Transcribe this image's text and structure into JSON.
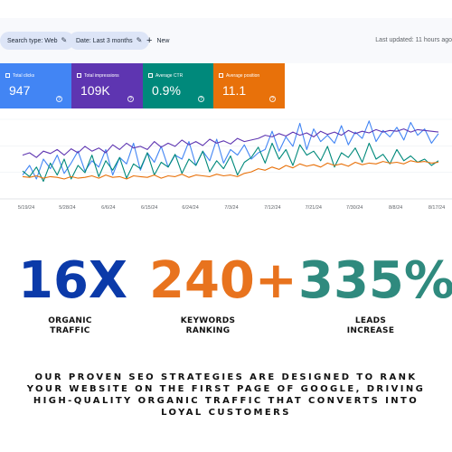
{
  "toolbar": {
    "search_type_chip": "Search type: Web",
    "date_chip": "Date: Last 3 months",
    "new_label": "New",
    "last_updated": "Last updated: 11 hours ago"
  },
  "metrics": [
    {
      "label": "Total clicks",
      "value": "947",
      "color": "#4285f4"
    },
    {
      "label": "Total impressions",
      "value": "109K",
      "color": "#5e35b1"
    },
    {
      "label": "Average CTR",
      "value": "0.9%",
      "color": "#00897b"
    },
    {
      "label": "Average position",
      "value": "11.1",
      "color": "#e8710a"
    }
  ],
  "chart_data": {
    "type": "line",
    "xlabel": "",
    "ylabel": "",
    "grid": true,
    "x_tick_labels": [
      "5/19/24",
      "5/28/24",
      "6/6/24",
      "6/15/24",
      "6/24/24",
      "7/3/24",
      "7/12/24",
      "7/21/24",
      "7/30/24",
      "8/8/24",
      "8/17/24"
    ],
    "series": [
      {
        "color": "#4285f4",
        "values": [
          0.3,
          0.42,
          0.25,
          0.5,
          0.38,
          0.55,
          0.32,
          0.45,
          0.6,
          0.35,
          0.48,
          0.4,
          0.62,
          0.3,
          0.52,
          0.44,
          0.7,
          0.36,
          0.58,
          0.46,
          0.66,
          0.4,
          0.55,
          0.5,
          0.72,
          0.42,
          0.6,
          0.48,
          0.75,
          0.45,
          0.62,
          0.55,
          0.68,
          0.5,
          0.58,
          0.62,
          0.85,
          0.6,
          0.78,
          0.66,
          0.95,
          0.62,
          0.88,
          0.72,
          0.8,
          0.7,
          0.92,
          0.68,
          0.84,
          0.76,
          0.98,
          0.72,
          0.86,
          0.78,
          0.9,
          0.74,
          0.96,
          0.8,
          0.88,
          0.7,
          0.82
        ]
      },
      {
        "color": "#5e35b1",
        "values": [
          0.55,
          0.58,
          0.52,
          0.6,
          0.57,
          0.62,
          0.55,
          0.63,
          0.58,
          0.66,
          0.6,
          0.64,
          0.58,
          0.68,
          0.62,
          0.7,
          0.64,
          0.66,
          0.62,
          0.72,
          0.65,
          0.7,
          0.66,
          0.74,
          0.68,
          0.72,
          0.67,
          0.75,
          0.7,
          0.73,
          0.69,
          0.76,
          0.72,
          0.74,
          0.76,
          0.8,
          0.78,
          0.82,
          0.79,
          0.84,
          0.8,
          0.83,
          0.78,
          0.85,
          0.81,
          0.84,
          0.8,
          0.86,
          0.82,
          0.85,
          0.83,
          0.87,
          0.84,
          0.86,
          0.85,
          0.88,
          0.84,
          0.87,
          0.86,
          0.85,
          0.84
        ]
      },
      {
        "color": "#00897b",
        "values": [
          0.35,
          0.28,
          0.4,
          0.22,
          0.45,
          0.3,
          0.5,
          0.25,
          0.42,
          0.33,
          0.55,
          0.28,
          0.48,
          0.36,
          0.52,
          0.26,
          0.44,
          0.38,
          0.58,
          0.3,
          0.46,
          0.4,
          0.56,
          0.32,
          0.5,
          0.42,
          0.6,
          0.34,
          0.48,
          0.38,
          0.54,
          0.3,
          0.46,
          0.52,
          0.65,
          0.45,
          0.7,
          0.5,
          0.62,
          0.42,
          0.68,
          0.55,
          0.6,
          0.48,
          0.66,
          0.4,
          0.58,
          0.52,
          0.64,
          0.46,
          0.7,
          0.5,
          0.56,
          0.44,
          0.62,
          0.48,
          0.54,
          0.46,
          0.5,
          0.42,
          0.48
        ]
      },
      {
        "color": "#e8710a",
        "values": [
          0.28,
          0.27,
          0.29,
          0.26,
          0.28,
          0.27,
          0.25,
          0.28,
          0.26,
          0.27,
          0.29,
          0.26,
          0.3,
          0.27,
          0.28,
          0.25,
          0.29,
          0.28,
          0.27,
          0.3,
          0.26,
          0.29,
          0.28,
          0.31,
          0.27,
          0.3,
          0.29,
          0.28,
          0.31,
          0.29,
          0.3,
          0.28,
          0.32,
          0.34,
          0.38,
          0.36,
          0.4,
          0.37,
          0.42,
          0.39,
          0.44,
          0.41,
          0.43,
          0.4,
          0.45,
          0.42,
          0.44,
          0.41,
          0.46,
          0.43,
          0.45,
          0.44,
          0.47,
          0.45,
          0.46,
          0.44,
          0.48,
          0.46,
          0.47,
          0.45,
          0.46
        ]
      }
    ]
  },
  "stats": [
    {
      "number": "16X",
      "label": "ORGANIC TRAFFIC",
      "color": "#0b3aa9"
    },
    {
      "number": "240+",
      "label": "KEYWORDS RANKING",
      "color": "#e8731e"
    },
    {
      "number": "335%",
      "label": "LEADS INCREASE",
      "color": "#2f8a7e"
    }
  ],
  "tagline": "OUR PROVEN SEO STRATEGIES ARE DESIGNED TO RANK YOUR WEBSITE ON THE FIRST PAGE OF GOOGLE, DRIVING HIGH-QUALITY ORGANIC TRAFFIC THAT CONVERTS INTO LOYAL CUSTOMERS"
}
